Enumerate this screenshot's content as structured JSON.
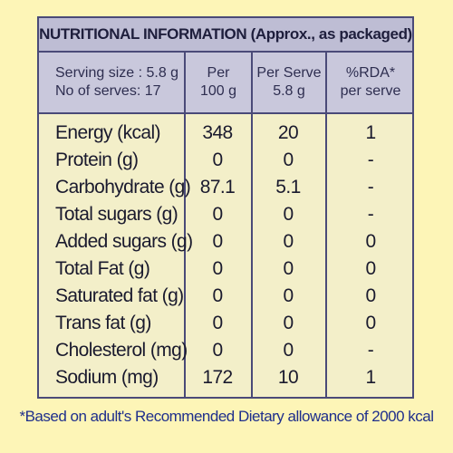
{
  "title": "NUTRITIONAL INFORMATION (Approx., as packaged)",
  "header": {
    "serving_size": "Serving size : 5.8 g",
    "servings": "No of serves: 17",
    "col1_line1": "Per",
    "col1_line2": "100 g",
    "col2_line1": "Per Serve",
    "col2_line2": "5.8 g",
    "col3_line1": "%RDA*",
    "col3_line2": "per serve"
  },
  "rows": [
    {
      "name": "Energy (kcal)",
      "per100": "348",
      "perServe": "20",
      "rda": "1"
    },
    {
      "name": "Protein (g)",
      "per100": "0",
      "perServe": "0",
      "rda": "-"
    },
    {
      "name": "Carbohydrate (g)",
      "per100": "87.1",
      "perServe": "5.1",
      "rda": "-"
    },
    {
      "name": "Total sugars (g)",
      "per100": "0",
      "perServe": "0",
      "rda": "-"
    },
    {
      "name": "Added sugars (g)",
      "per100": "0",
      "perServe": "0",
      "rda": "0"
    },
    {
      "name": "Total Fat (g)",
      "per100": "0",
      "perServe": "0",
      "rda": "0"
    },
    {
      "name": "Saturated fat (g)",
      "per100": "0",
      "perServe": "0",
      "rda": "0"
    },
    {
      "name": "Trans fat (g)",
      "per100": "0",
      "perServe": "0",
      "rda": "0"
    },
    {
      "name": "Cholesterol (mg)",
      "per100": "0",
      "perServe": "0",
      "rda": "-"
    },
    {
      "name": "Sodium (mg)",
      "per100": "172",
      "perServe": "10",
      "rda": "1"
    }
  ],
  "footnote": "*Based on adult's Recommended Dietary allowance of 2000 kcal"
}
